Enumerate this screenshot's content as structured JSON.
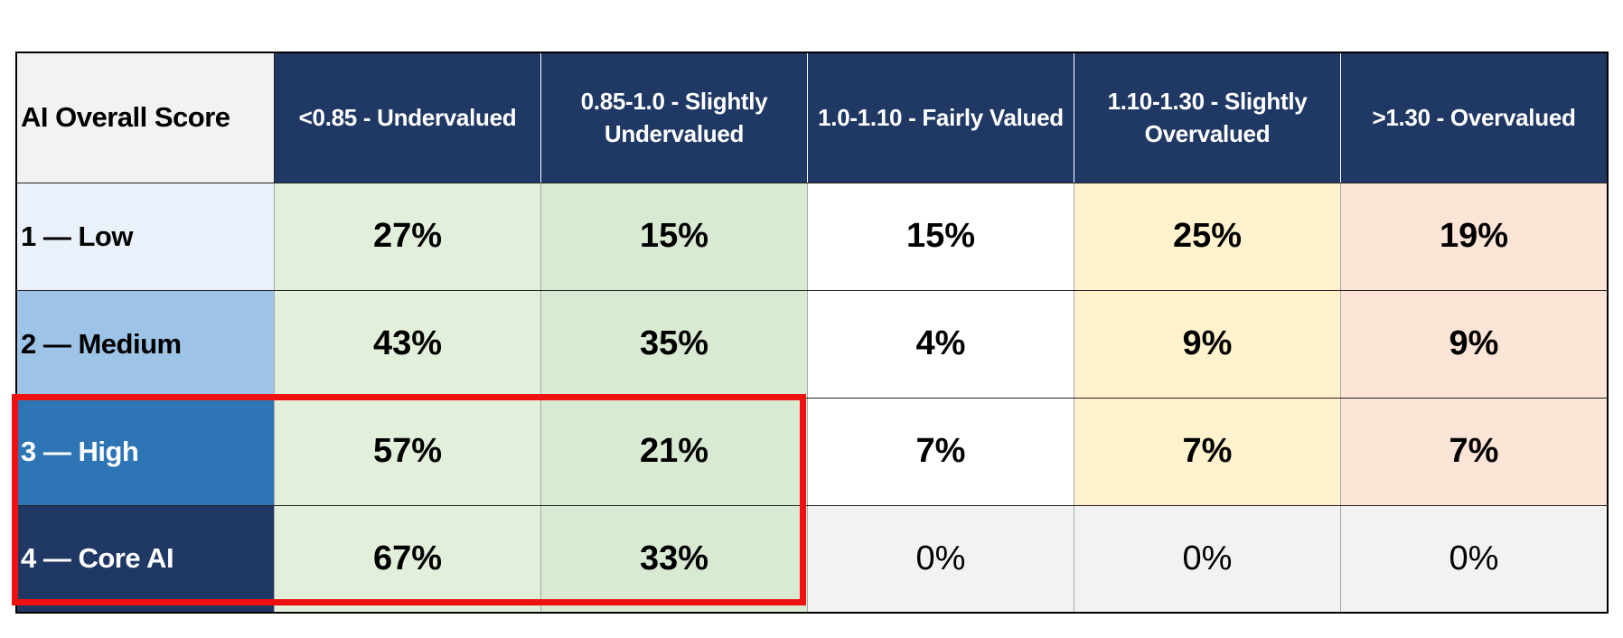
{
  "chart_data": {
    "type": "table",
    "corner_label": "AI Overall Score",
    "columns": [
      {
        "label": "<0.85 -  Undervalued",
        "header_color": "#203864"
      },
      {
        "label": "0.85-1.0 - Slightly Undervalued",
        "header_color": "#203864"
      },
      {
        "label": "1.0-1.10 - Fairly Valued",
        "header_color": "#203864"
      },
      {
        "label": "1.10-1.30 - Slightly Overvalued",
        "header_color": "#203864"
      },
      {
        "label": ">1.30 - Overvalued",
        "header_color": "#203864"
      }
    ],
    "rows": [
      {
        "label": "1 — Low",
        "label_bg": "#ebf1fa",
        "label_color": "#000000",
        "values": [
          "27%",
          "15%",
          "15%",
          "25%",
          "19%"
        ],
        "cell_bgs": [
          "#e2efda",
          "#d9ead3",
          "#ffffff",
          "#fff2cc",
          "#fce4d6"
        ],
        "bold": [
          true,
          true,
          true,
          true,
          true
        ]
      },
      {
        "label": "2 — Medium",
        "label_bg": "#9dc3e6",
        "label_color": "#000000",
        "values": [
          "43%",
          "35%",
          "4%",
          "9%",
          "9%"
        ],
        "cell_bgs": [
          "#e2efda",
          "#d9ead3",
          "#ffffff",
          "#fff2cc",
          "#fce4d6"
        ],
        "bold": [
          true,
          true,
          true,
          true,
          true
        ]
      },
      {
        "label": "3 — High",
        "label_bg": "#2e75b6",
        "label_color": "#ffffff",
        "values": [
          "57%",
          "21%",
          "7%",
          "7%",
          "7%"
        ],
        "cell_bgs": [
          "#e2efda",
          "#d9ead3",
          "#ffffff",
          "#fff2cc",
          "#fce4d6"
        ],
        "bold": [
          true,
          true,
          true,
          true,
          true
        ]
      },
      {
        "label": "4 — Core AI",
        "label_bg": "#203864",
        "label_color": "#ffffff",
        "values": [
          "67%",
          "33%",
          "0%",
          "0%",
          "0%"
        ],
        "cell_bgs": [
          "#e2efda",
          "#d9ead3",
          "#f2f2f2",
          "#f2f2f2",
          "#f2f2f2"
        ],
        "bold": [
          true,
          true,
          false,
          false,
          false
        ]
      }
    ],
    "highlight": {
      "rows": [
        "3 — High",
        "4 — Core AI"
      ],
      "columns": [
        "<0.85 -  Undervalued",
        "0.85-1.0 - Slightly Undervalued"
      ],
      "color": "#ee1111"
    }
  }
}
